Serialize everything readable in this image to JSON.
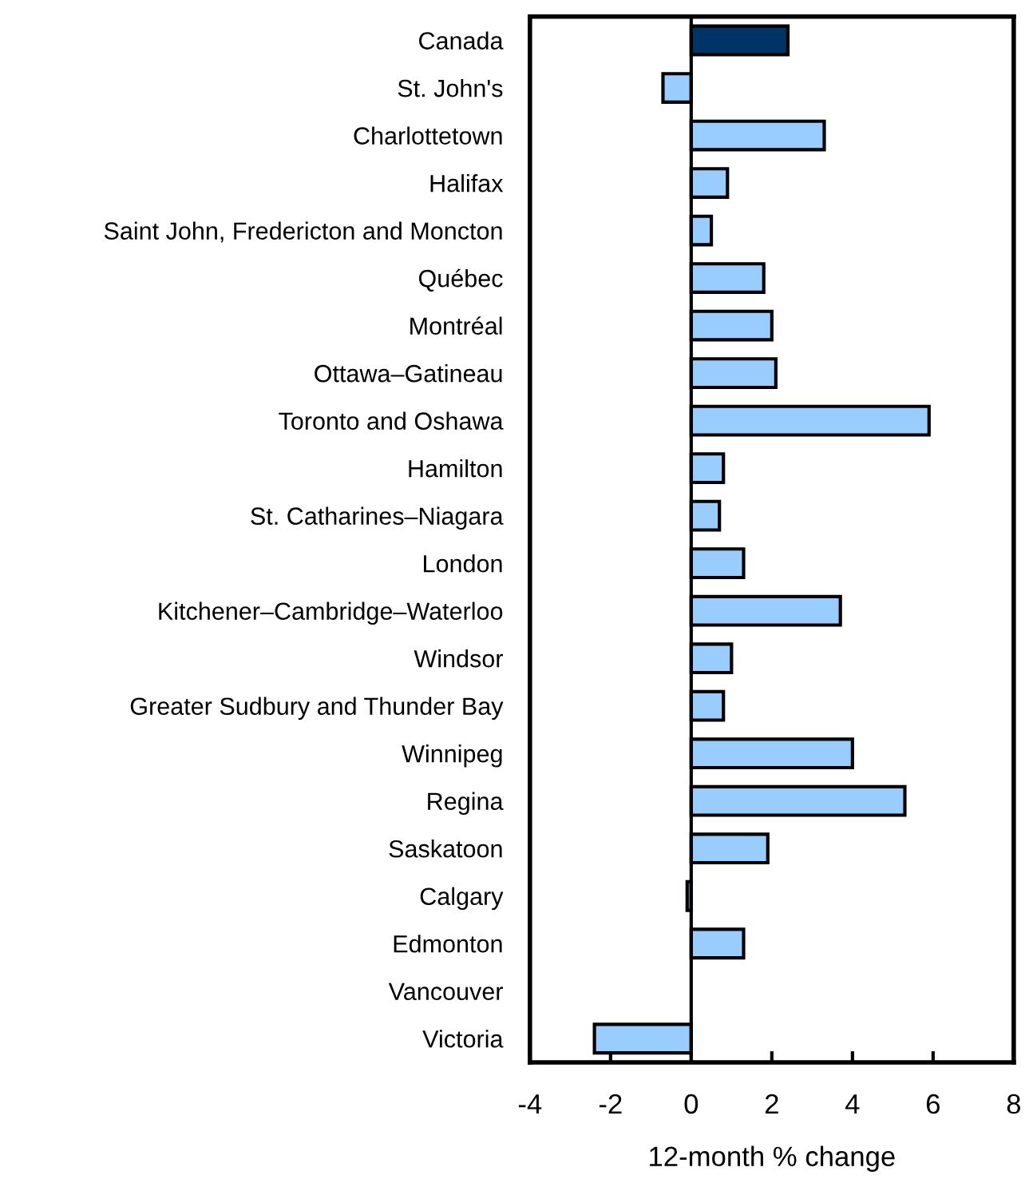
{
  "chart_data": {
    "type": "bar",
    "orientation": "horizontal",
    "xlabel": "12-month % change",
    "categories": [
      "Canada",
      "St. John's",
      "Charlottetown",
      "Halifax",
      "Saint John, Fredericton and Moncton",
      "Québec",
      "Montréal",
      "Ottawa–Gatineau",
      "Toronto and Oshawa",
      "Hamilton",
      "St. Catharines–Niagara",
      "London",
      "Kitchener–Cambridge–Waterloo",
      "Windsor",
      "Greater Sudbury and Thunder Bay",
      "Winnipeg",
      "Regina",
      "Saskatoon",
      "Calgary",
      "Edmonton",
      "Vancouver",
      "Victoria"
    ],
    "values": [
      2.4,
      -0.7,
      3.3,
      0.9,
      0.5,
      1.8,
      2.0,
      2.1,
      5.9,
      0.8,
      0.7,
      1.3,
      3.7,
      1.0,
      0.8,
      4.0,
      5.3,
      1.9,
      -0.1,
      1.3,
      null,
      -2.4
    ],
    "colors": [
      "#003366",
      "#99ccff",
      "#99ccff",
      "#99ccff",
      "#99ccff",
      "#99ccff",
      "#99ccff",
      "#99ccff",
      "#99ccff",
      "#99ccff",
      "#99ccff",
      "#99ccff",
      "#99ccff",
      "#99ccff",
      "#99ccff",
      "#99ccff",
      "#99ccff",
      "#99ccff",
      "#99ccff",
      "#99ccff",
      "#99ccff",
      "#99ccff"
    ],
    "xlim": [
      -4,
      8
    ],
    "xticks": [
      -4,
      -2,
      0,
      2,
      4,
      6,
      8
    ],
    "ref_lines": [
      {
        "axis": "x",
        "value": 0,
        "color": "#000000"
      }
    ],
    "grid": false,
    "legend": false
  }
}
